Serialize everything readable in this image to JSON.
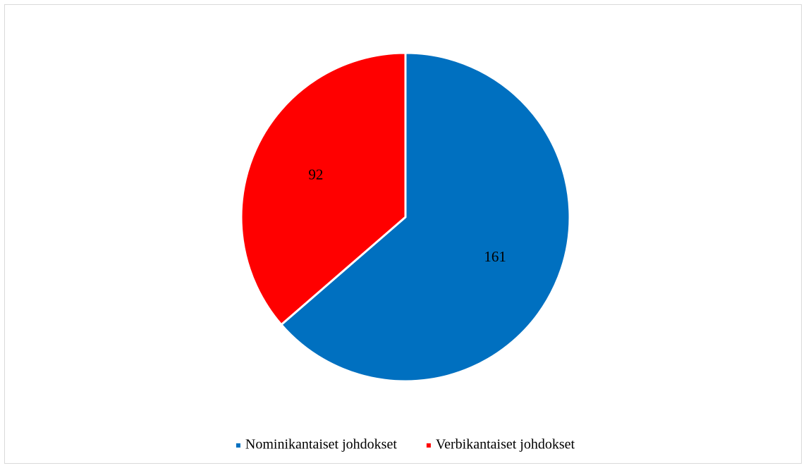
{
  "chart_data": {
    "type": "pie",
    "categories": [
      "Nominikantaiset johdokset",
      "Verbikantaiset johdokset"
    ],
    "values": [
      161,
      92
    ],
    "colors": [
      "#0070c0",
      "#ff0000"
    ],
    "legend": "bottom"
  }
}
